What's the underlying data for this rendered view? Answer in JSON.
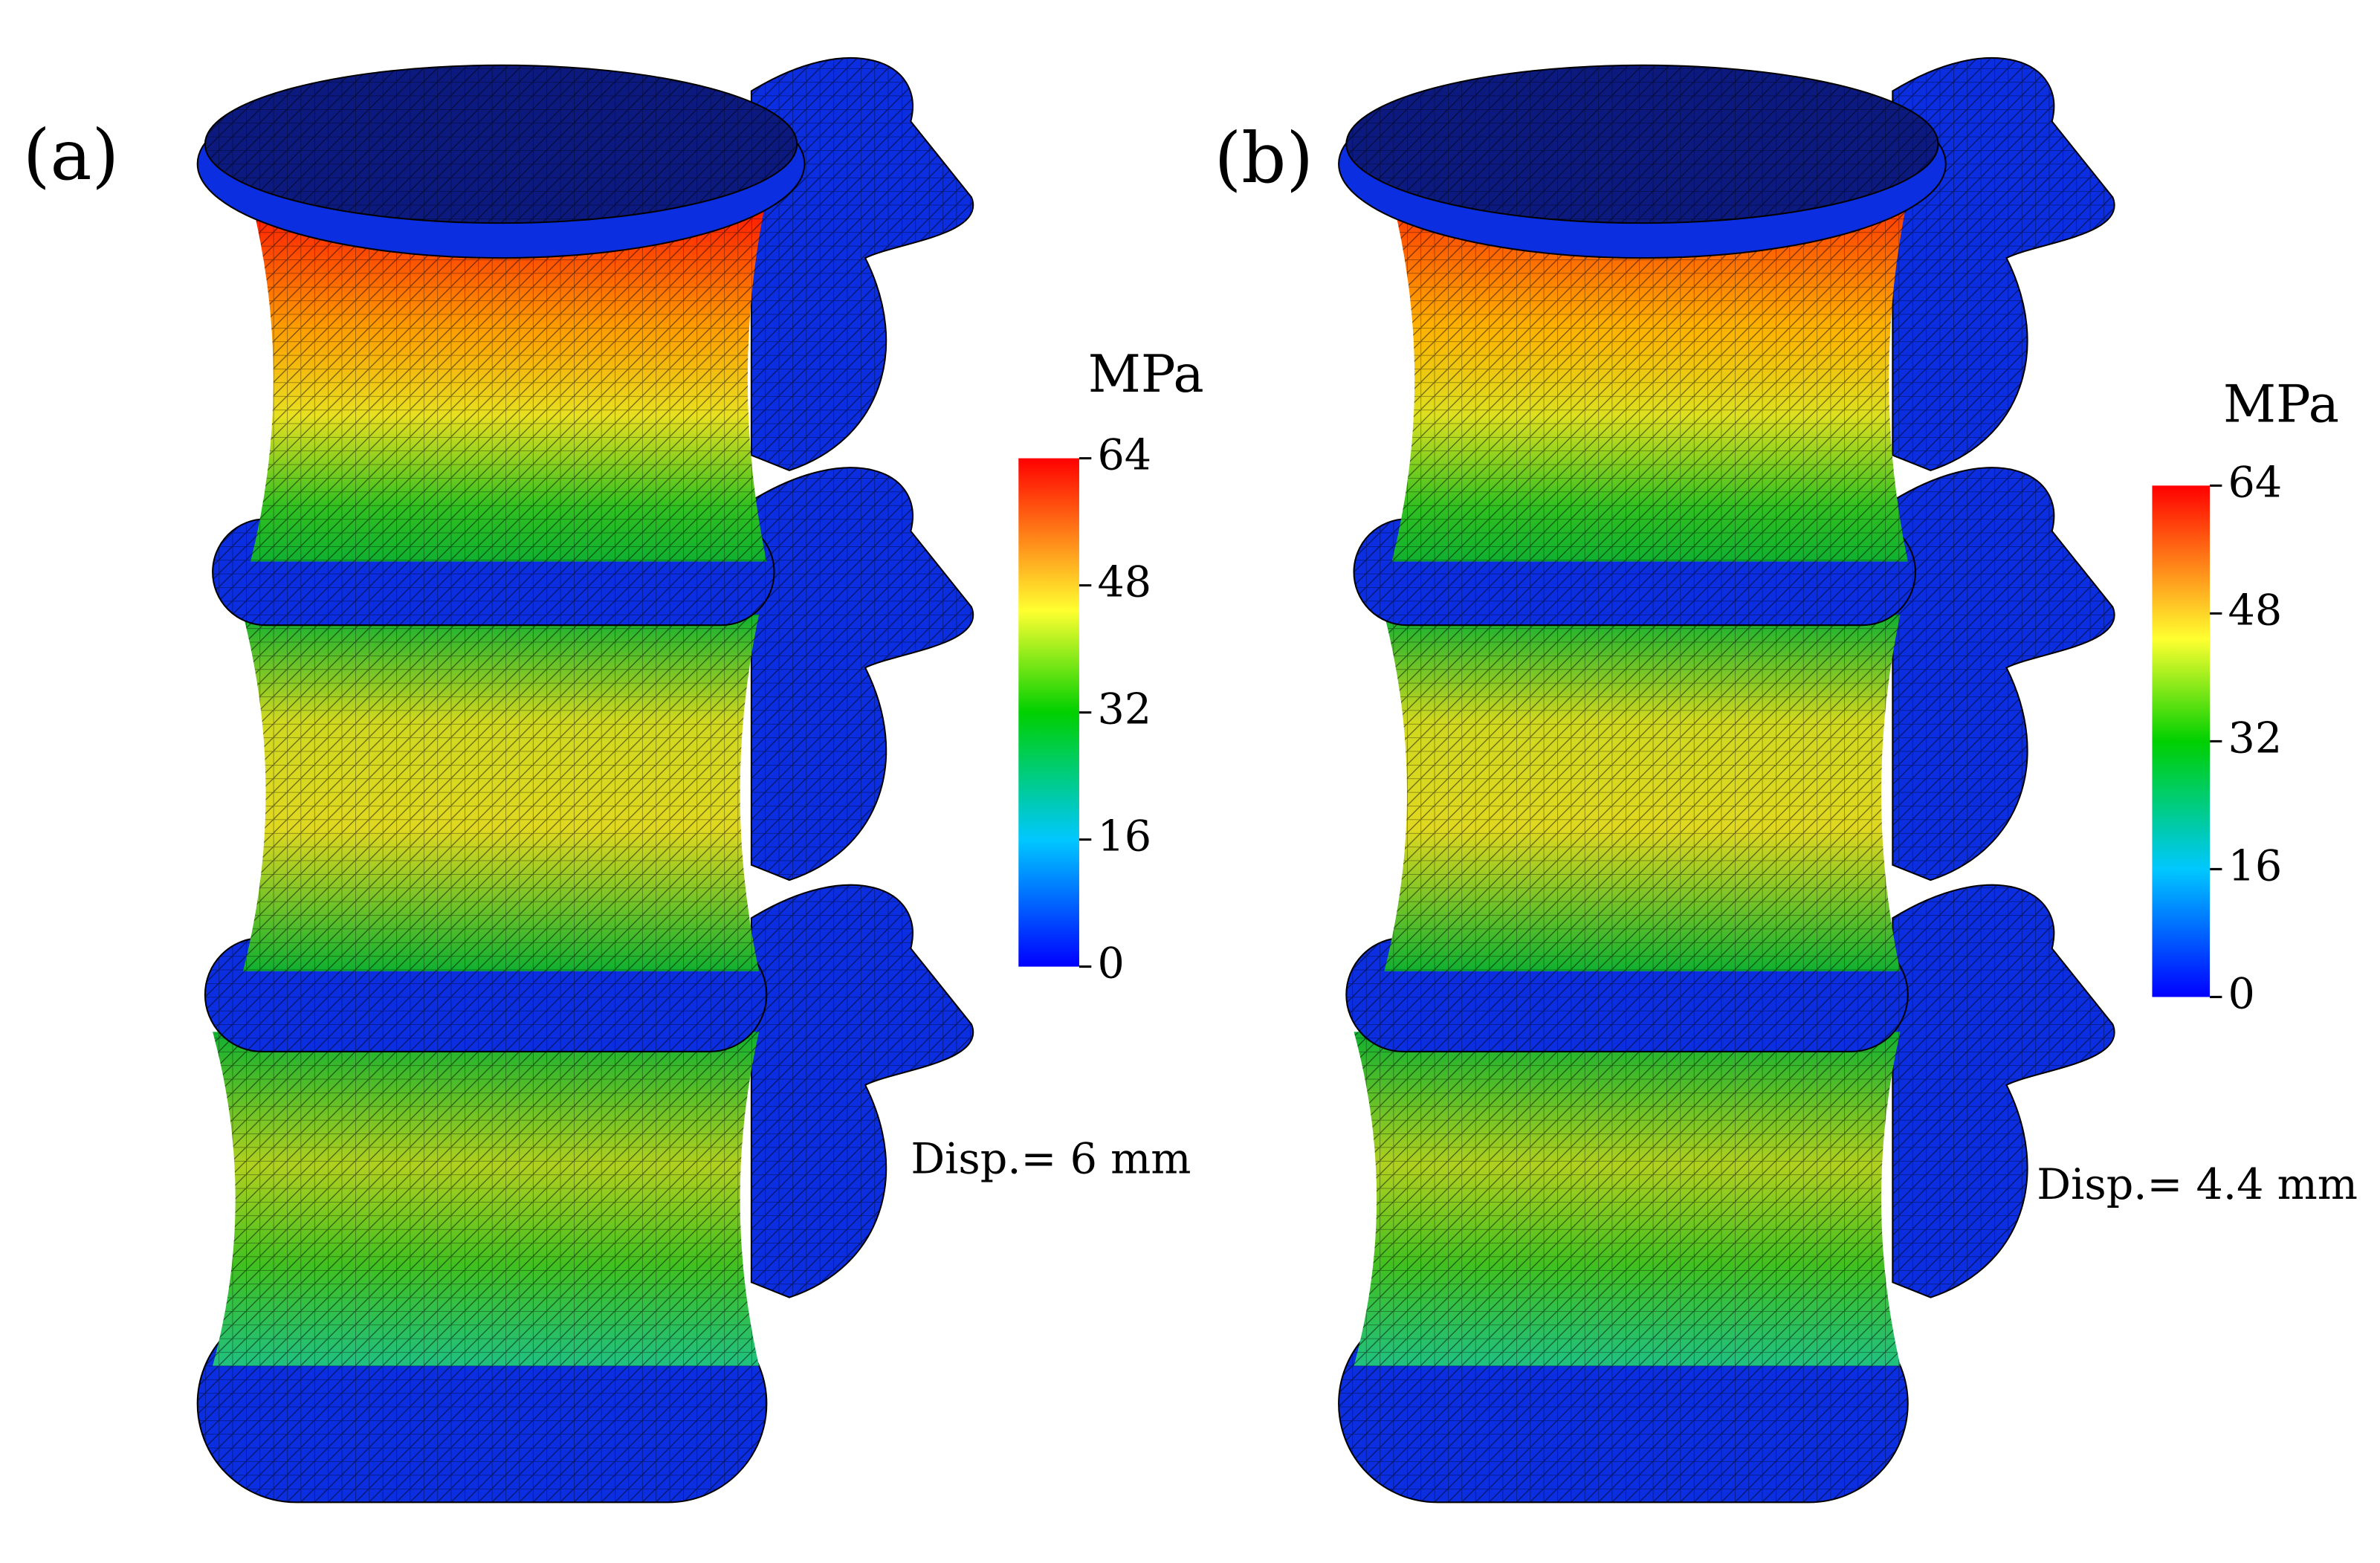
{
  "panels": [
    {
      "label": "(a)",
      "colorbar": {
        "unit": "MPa",
        "lim": [
          0,
          64
        ],
        "ticks": [
          0,
          16,
          32,
          48,
          64
        ]
      },
      "annotation": "Disp.= 6 mm"
    },
    {
      "label": "(b)",
      "colorbar": {
        "unit": "MPa",
        "lim": [
          0,
          64
        ],
        "ticks": [
          0,
          16,
          32,
          48,
          64
        ]
      },
      "annotation": "Disp.= 4.4 mm"
    }
  ]
}
